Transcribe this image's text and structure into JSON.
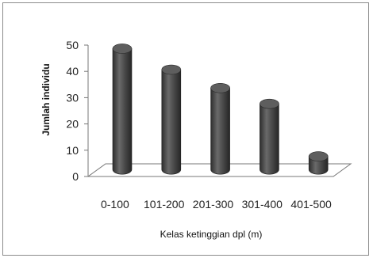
{
  "chart_data": {
    "type": "bar",
    "categories": [
      "0-100",
      "101-200",
      "201-300",
      "301-400",
      "401-500"
    ],
    "values": [
      46,
      38,
      31,
      25,
      5
    ],
    "xlabel": "Kelas ketinggian dpl (m)",
    "ylabel": "Jumlah individu",
    "ylim": [
      0,
      50
    ],
    "yticks": [
      0,
      10,
      20,
      30,
      40,
      50
    ],
    "grid": false,
    "style": "3d-cylinder",
    "bar_color": "#505050"
  }
}
